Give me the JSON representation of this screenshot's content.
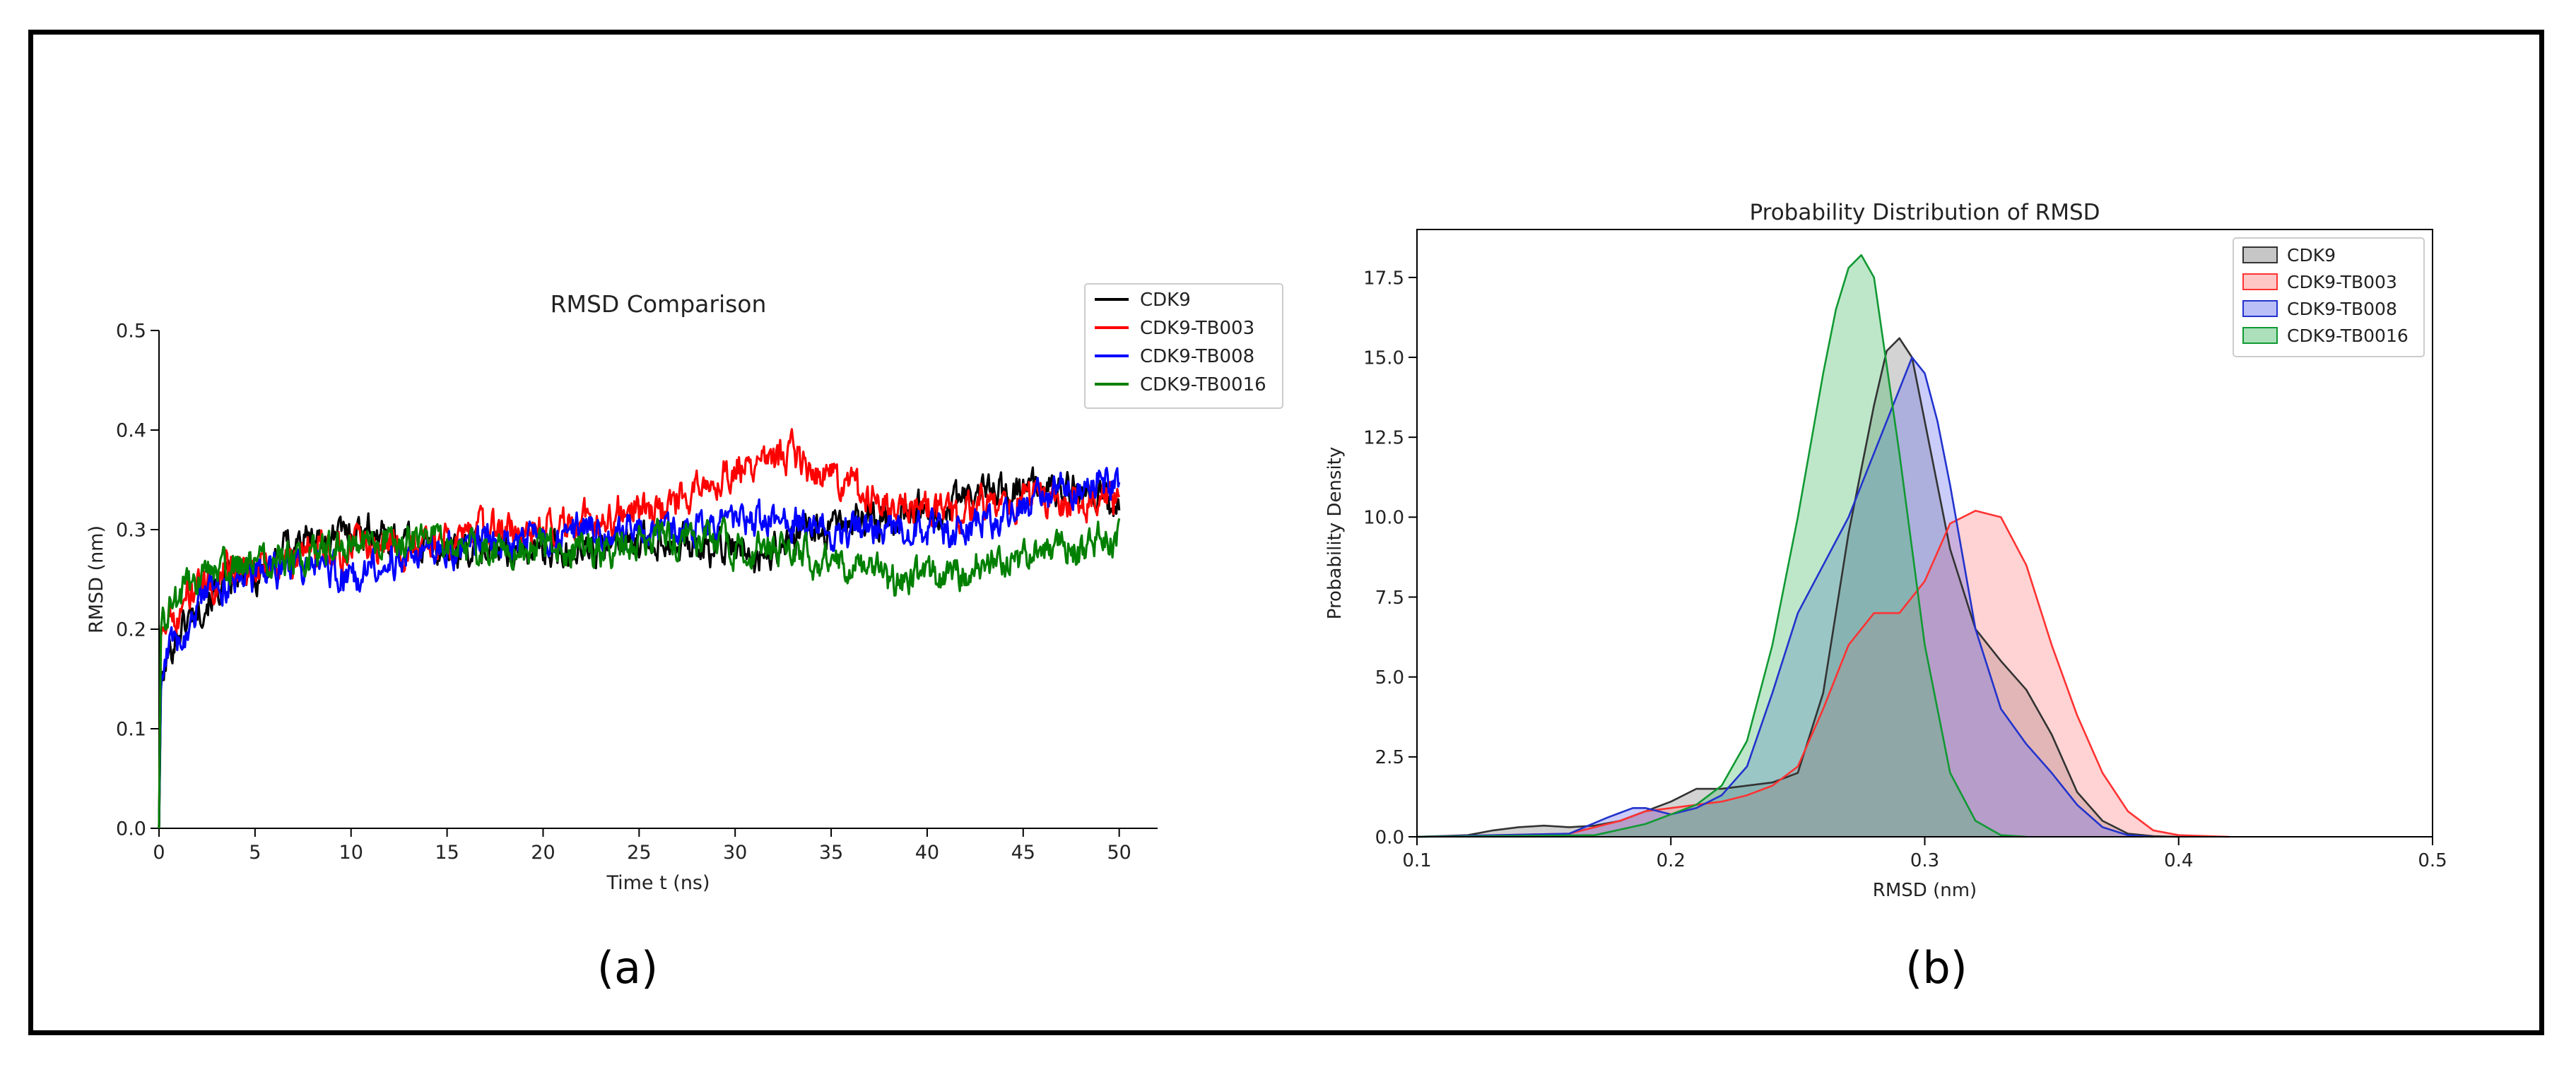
{
  "figure": {
    "panel_a_caption": "(a)",
    "panel_b_caption": "(b)"
  },
  "chart_data": [
    {
      "type": "line",
      "title": "RMSD Comparison",
      "xlabel": "Time t (ns)",
      "ylabel": "RMSD (nm)",
      "xlim": [
        0,
        52
      ],
      "ylim": [
        0,
        0.5
      ],
      "xticks": [
        "0",
        "5",
        "10",
        "15",
        "20",
        "25",
        "30",
        "35",
        "40",
        "45",
        "50"
      ],
      "yticks": [
        "0.0",
        "0.1",
        "0.2",
        "0.3",
        "0.4",
        "0.5"
      ],
      "grid": false,
      "legend": "top-right",
      "x_step": 0.05,
      "series": [
        {
          "name": "CDK9",
          "color": "#000000",
          "x": [
            0,
            0.1,
            0.3,
            0.6,
            1,
            1.5,
            2,
            3,
            4,
            5,
            6,
            7,
            8,
            9,
            10,
            11,
            12,
            13,
            14,
            15,
            16,
            17,
            18,
            19,
            20,
            21,
            22,
            23,
            24,
            25,
            26,
            27,
            28,
            29,
            30,
            31,
            32,
            33,
            34,
            35,
            36,
            37,
            38,
            39,
            40,
            41,
            42,
            43,
            44,
            45,
            46,
            47,
            48,
            49,
            50
          ],
          "values": [
            0.0,
            0.14,
            0.16,
            0.18,
            0.2,
            0.21,
            0.22,
            0.24,
            0.25,
            0.25,
            0.27,
            0.29,
            0.29,
            0.29,
            0.3,
            0.3,
            0.29,
            0.29,
            0.28,
            0.28,
            0.28,
            0.28,
            0.28,
            0.28,
            0.28,
            0.28,
            0.28,
            0.28,
            0.29,
            0.29,
            0.29,
            0.29,
            0.28,
            0.28,
            0.28,
            0.27,
            0.28,
            0.29,
            0.3,
            0.3,
            0.31,
            0.31,
            0.31,
            0.32,
            0.32,
            0.32,
            0.33,
            0.34,
            0.34,
            0.34,
            0.34,
            0.34,
            0.34,
            0.33,
            0.32
          ]
        },
        {
          "name": "CDK9-TB003",
          "color": "#ff0000",
          "x": [
            0,
            0.1,
            0.3,
            0.6,
            1,
            1.5,
            2,
            3,
            4,
            5,
            6,
            7,
            8,
            9,
            10,
            11,
            12,
            13,
            14,
            15,
            16,
            17,
            18,
            19,
            20,
            21,
            22,
            23,
            24,
            25,
            26,
            27,
            28,
            29,
            30,
            31,
            32,
            33,
            34,
            35,
            36,
            37,
            38,
            39,
            40,
            41,
            42,
            43,
            44,
            45,
            46,
            47,
            48,
            49,
            50
          ],
          "values": [
            0.0,
            0.2,
            0.21,
            0.22,
            0.22,
            0.23,
            0.24,
            0.25,
            0.26,
            0.26,
            0.27,
            0.27,
            0.28,
            0.28,
            0.28,
            0.28,
            0.28,
            0.28,
            0.29,
            0.29,
            0.29,
            0.3,
            0.3,
            0.3,
            0.3,
            0.31,
            0.31,
            0.31,
            0.32,
            0.32,
            0.32,
            0.33,
            0.34,
            0.35,
            0.36,
            0.37,
            0.37,
            0.38,
            0.36,
            0.35,
            0.34,
            0.33,
            0.33,
            0.33,
            0.32,
            0.32,
            0.32,
            0.33,
            0.33,
            0.33,
            0.33,
            0.33,
            0.33,
            0.33,
            0.33
          ]
        },
        {
          "name": "CDK9-TB008",
          "color": "#0000ff",
          "x": [
            0,
            0.1,
            0.3,
            0.6,
            1,
            1.5,
            2,
            3,
            4,
            5,
            6,
            7,
            8,
            9,
            10,
            11,
            12,
            13,
            14,
            15,
            16,
            17,
            18,
            19,
            20,
            21,
            22,
            23,
            24,
            25,
            26,
            27,
            28,
            29,
            30,
            31,
            32,
            33,
            34,
            35,
            36,
            37,
            38,
            39,
            40,
            41,
            42,
            43,
            44,
            45,
            46,
            47,
            48,
            49,
            50
          ],
          "values": [
            0.0,
            0.15,
            0.17,
            0.18,
            0.19,
            0.2,
            0.22,
            0.24,
            0.25,
            0.25,
            0.26,
            0.26,
            0.26,
            0.26,
            0.25,
            0.26,
            0.27,
            0.27,
            0.27,
            0.28,
            0.28,
            0.29,
            0.29,
            0.29,
            0.29,
            0.29,
            0.3,
            0.3,
            0.3,
            0.3,
            0.3,
            0.3,
            0.3,
            0.31,
            0.31,
            0.31,
            0.31,
            0.31,
            0.3,
            0.3,
            0.3,
            0.3,
            0.3,
            0.3,
            0.3,
            0.3,
            0.3,
            0.31,
            0.31,
            0.32,
            0.33,
            0.34,
            0.35,
            0.35,
            0.34
          ]
        },
        {
          "name": "CDK9-TB0016",
          "color": "#008000",
          "x": [
            0,
            0.1,
            0.3,
            0.6,
            1,
            1.5,
            2,
            3,
            4,
            5,
            6,
            7,
            8,
            9,
            10,
            11,
            12,
            13,
            14,
            15,
            16,
            17,
            18,
            19,
            20,
            21,
            22,
            23,
            24,
            25,
            26,
            27,
            28,
            29,
            30,
            31,
            32,
            33,
            34,
            35,
            36,
            37,
            38,
            39,
            40,
            41,
            42,
            43,
            44,
            45,
            46,
            47,
            48,
            49,
            50
          ],
          "values": [
            0.0,
            0.2,
            0.21,
            0.22,
            0.23,
            0.24,
            0.25,
            0.26,
            0.26,
            0.27,
            0.27,
            0.27,
            0.28,
            0.28,
            0.28,
            0.29,
            0.29,
            0.29,
            0.29,
            0.28,
            0.28,
            0.28,
            0.28,
            0.28,
            0.28,
            0.28,
            0.28,
            0.28,
            0.28,
            0.29,
            0.29,
            0.29,
            0.29,
            0.29,
            0.28,
            0.28,
            0.28,
            0.28,
            0.27,
            0.27,
            0.26,
            0.26,
            0.25,
            0.25,
            0.25,
            0.25,
            0.26,
            0.27,
            0.27,
            0.27,
            0.28,
            0.28,
            0.28,
            0.29,
            0.29
          ]
        }
      ]
    },
    {
      "type": "area",
      "title": "Probability Distribution of RMSD",
      "xlabel": "RMSD (nm)",
      "ylabel": "Probability Density",
      "xlim": [
        0.1,
        0.5
      ],
      "ylim": [
        0,
        19.0
      ],
      "xticks": [
        "0.1",
        "0.2",
        "0.3",
        "0.4",
        "0.5"
      ],
      "yticks": [
        "0.0",
        "2.5",
        "5.0",
        "7.5",
        "10.0",
        "12.5",
        "15.0",
        "17.5"
      ],
      "grid": false,
      "legend": "top-right",
      "fill_opacity": 0.35,
      "series": [
        {
          "name": "CDK9",
          "color": "#333333",
          "fill": "#808080",
          "x": [
            0.1,
            0.12,
            0.13,
            0.14,
            0.15,
            0.16,
            0.17,
            0.18,
            0.19,
            0.2,
            0.21,
            0.22,
            0.23,
            0.24,
            0.25,
            0.26,
            0.27,
            0.28,
            0.285,
            0.29,
            0.295,
            0.3,
            0.31,
            0.32,
            0.33,
            0.34,
            0.35,
            0.36,
            0.37,
            0.38,
            0.39,
            0.4
          ],
          "values": [
            0.0,
            0.05,
            0.2,
            0.3,
            0.35,
            0.3,
            0.35,
            0.5,
            0.8,
            1.1,
            1.5,
            1.5,
            1.6,
            1.7,
            2.0,
            4.5,
            9.5,
            13.5,
            15.2,
            15.6,
            15.0,
            13.0,
            9.0,
            6.5,
            5.5,
            4.6,
            3.2,
            1.4,
            0.5,
            0.1,
            0.02,
            0.0
          ]
        },
        {
          "name": "CDK9-TB003",
          "color": "#ff3333",
          "fill": "#ff8080",
          "x": [
            0.1,
            0.16,
            0.18,
            0.19,
            0.2,
            0.21,
            0.22,
            0.23,
            0.24,
            0.25,
            0.26,
            0.27,
            0.28,
            0.29,
            0.3,
            0.31,
            0.32,
            0.33,
            0.34,
            0.35,
            0.36,
            0.37,
            0.38,
            0.39,
            0.4,
            0.42
          ],
          "values": [
            0.0,
            0.1,
            0.5,
            0.8,
            0.9,
            1.0,
            1.1,
            1.3,
            1.6,
            2.2,
            4.0,
            6.0,
            7.0,
            7.0,
            8.0,
            9.8,
            10.2,
            10.0,
            8.5,
            6.0,
            3.8,
            2.0,
            0.8,
            0.2,
            0.05,
            0.0
          ]
        },
        {
          "name": "CDK9-TB008",
          "color": "#2233cc",
          "fill": "#6670ee",
          "x": [
            0.1,
            0.16,
            0.175,
            0.185,
            0.19,
            0.2,
            0.21,
            0.22,
            0.23,
            0.24,
            0.25,
            0.26,
            0.27,
            0.28,
            0.29,
            0.295,
            0.3,
            0.305,
            0.31,
            0.32,
            0.33,
            0.34,
            0.35,
            0.36,
            0.37,
            0.38,
            0.39
          ],
          "values": [
            0.0,
            0.1,
            0.6,
            0.9,
            0.9,
            0.7,
            0.9,
            1.3,
            2.2,
            4.5,
            7.0,
            8.5,
            10.0,
            12.0,
            14.0,
            15.0,
            14.5,
            13.0,
            11.0,
            6.5,
            4.0,
            2.9,
            2.0,
            1.0,
            0.3,
            0.05,
            0.0
          ]
        },
        {
          "name": "CDK9-TB0016",
          "color": "#119933",
          "fill": "#44bb66",
          "x": [
            0.1,
            0.17,
            0.19,
            0.2,
            0.21,
            0.22,
            0.23,
            0.24,
            0.25,
            0.26,
            0.265,
            0.27,
            0.275,
            0.28,
            0.29,
            0.3,
            0.31,
            0.32,
            0.33,
            0.34
          ],
          "values": [
            0.0,
            0.05,
            0.4,
            0.7,
            1.0,
            1.6,
            3.0,
            6.0,
            10.0,
            14.5,
            16.5,
            17.8,
            18.2,
            17.5,
            12.0,
            6.0,
            2.0,
            0.5,
            0.05,
            0.0
          ]
        }
      ]
    }
  ]
}
